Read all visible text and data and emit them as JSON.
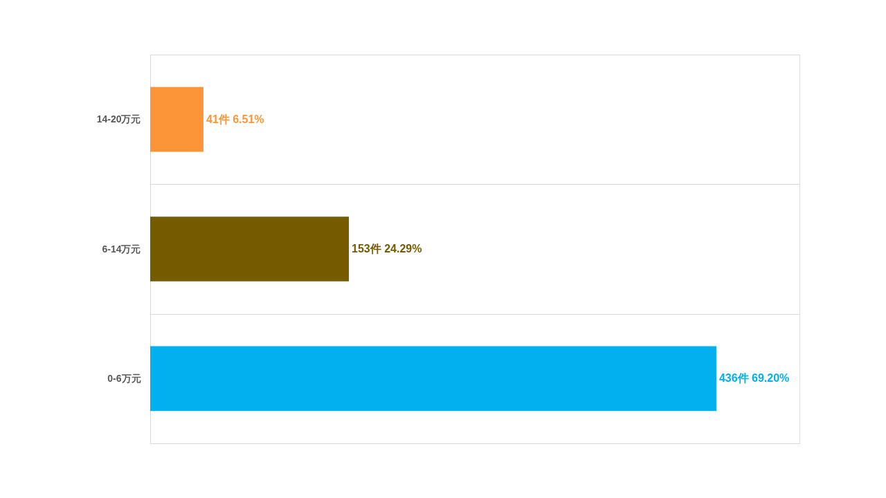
{
  "chart_data": {
    "type": "bar",
    "orientation": "horizontal",
    "categories": [
      "14-20万元",
      "6-14万元",
      "0-6万元"
    ],
    "values": [
      41,
      153,
      436
    ],
    "colors": [
      "#fb9537",
      "#765a00",
      "#00b0ef"
    ],
    "value_labels": [
      "41件 6.51%",
      "153件 24.29%",
      "436件 69.20%"
    ],
    "xlim": [
      0,
      500
    ],
    "tick_labels": "y",
    "grid": "y"
  }
}
